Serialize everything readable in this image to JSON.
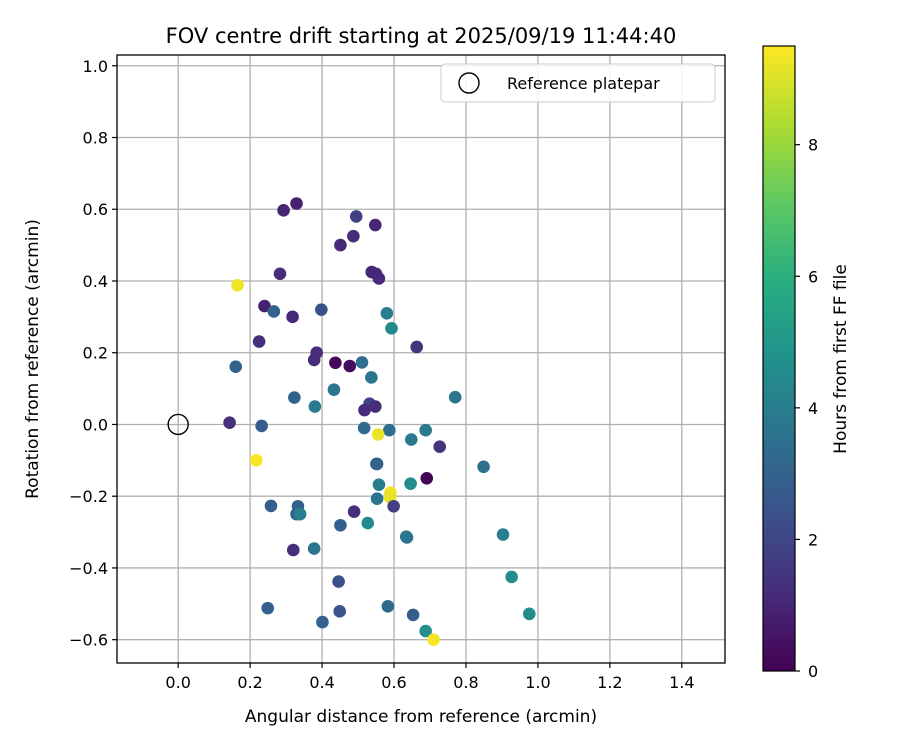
{
  "chart_data": {
    "type": "scatter",
    "title": "FOV centre drift starting at 2025/09/19 11:44:40",
    "xlabel": "Angular distance from reference (arcmin)",
    "ylabel": "Rotation from reference (arcmin)",
    "xlim": [
      -0.17,
      1.52
    ],
    "ylim": [
      -0.665,
      1.03
    ],
    "xticks": [
      "0.0",
      "0.2",
      "0.4",
      "0.6",
      "0.8",
      "1.0",
      "1.2",
      "1.4"
    ],
    "yticks": [
      "−0.6",
      "−0.4",
      "−0.2",
      "0.0",
      "0.2",
      "0.4",
      "0.6",
      "0.8",
      "1.0"
    ],
    "grid": true,
    "legend_position": "top-right",
    "legend": [
      {
        "label": "Reference platepar",
        "marker": "open-circle"
      }
    ],
    "reference_point": {
      "x": 0.0,
      "y": 0.0
    },
    "colorbar": {
      "label": "Hours from first FF file",
      "range": [
        0,
        9.5
      ],
      "ticks": [
        "0",
        "2",
        "4",
        "6",
        "8"
      ],
      "colormap": "viridis"
    },
    "series": [
      {
        "points": [
          {
            "x": 0.293,
            "y": 0.597,
            "h": 1.0
          },
          {
            "x": 0.329,
            "y": 0.616,
            "h": 0.9
          },
          {
            "x": 0.495,
            "y": 0.58,
            "h": 1.8
          },
          {
            "x": 0.548,
            "y": 0.556,
            "h": 1.0
          },
          {
            "x": 0.487,
            "y": 0.525,
            "h": 1.2
          },
          {
            "x": 0.451,
            "y": 0.5,
            "h": 1.1
          },
          {
            "x": 0.538,
            "y": 0.425,
            "h": 1.0
          },
          {
            "x": 0.55,
            "y": 0.42,
            "h": 1.0
          },
          {
            "x": 0.558,
            "y": 0.407,
            "h": 1.1
          },
          {
            "x": 0.283,
            "y": 0.42,
            "h": 1.2
          },
          {
            "x": 0.165,
            "y": 0.388,
            "h": 9.3
          },
          {
            "x": 0.24,
            "y": 0.33,
            "h": 0.9
          },
          {
            "x": 0.266,
            "y": 0.315,
            "h": 3.0
          },
          {
            "x": 0.318,
            "y": 0.3,
            "h": 1.1
          },
          {
            "x": 0.398,
            "y": 0.32,
            "h": 2.4
          },
          {
            "x": 0.58,
            "y": 0.31,
            "h": 4.0
          },
          {
            "x": 0.593,
            "y": 0.268,
            "h": 4.5
          },
          {
            "x": 0.663,
            "y": 0.216,
            "h": 1.4
          },
          {
            "x": 0.225,
            "y": 0.231,
            "h": 1.3
          },
          {
            "x": 0.385,
            "y": 0.2,
            "h": 1.2
          },
          {
            "x": 0.378,
            "y": 0.18,
            "h": 1.2
          },
          {
            "x": 0.437,
            "y": 0.172,
            "h": 0.2
          },
          {
            "x": 0.477,
            "y": 0.163,
            "h": 0.3
          },
          {
            "x": 0.511,
            "y": 0.173,
            "h": 3.4
          },
          {
            "x": 0.16,
            "y": 0.161,
            "h": 3.0
          },
          {
            "x": 0.537,
            "y": 0.131,
            "h": 3.7
          },
          {
            "x": 0.433,
            "y": 0.097,
            "h": 3.7
          },
          {
            "x": 0.323,
            "y": 0.075,
            "h": 3.0
          },
          {
            "x": 0.77,
            "y": 0.076,
            "h": 3.7
          },
          {
            "x": 0.38,
            "y": 0.05,
            "h": 3.9
          },
          {
            "x": 0.532,
            "y": 0.058,
            "h": 2.0
          },
          {
            "x": 0.548,
            "y": 0.05,
            "h": 1.2
          },
          {
            "x": 0.518,
            "y": 0.04,
            "h": 1.2
          },
          {
            "x": 0.143,
            "y": 0.005,
            "h": 1.3
          },
          {
            "x": 0.232,
            "y": -0.004,
            "h": 2.7
          },
          {
            "x": 0.517,
            "y": -0.01,
            "h": 3.3
          },
          {
            "x": 0.587,
            "y": -0.016,
            "h": 3.4
          },
          {
            "x": 0.688,
            "y": -0.016,
            "h": 3.9
          },
          {
            "x": 0.556,
            "y": -0.028,
            "h": 9.2
          },
          {
            "x": 0.648,
            "y": -0.042,
            "h": 3.9
          },
          {
            "x": 0.727,
            "y": -0.062,
            "h": 1.4
          },
          {
            "x": 0.217,
            "y": -0.1,
            "h": 9.4
          },
          {
            "x": 0.551,
            "y": -0.11,
            "h": 3.0
          },
          {
            "x": 0.553,
            "y": -0.11,
            "h": 2.9
          },
          {
            "x": 0.849,
            "y": -0.118,
            "h": 3.5
          },
          {
            "x": 0.691,
            "y": -0.15,
            "h": 0.1
          },
          {
            "x": 0.558,
            "y": -0.168,
            "h": 4.0
          },
          {
            "x": 0.646,
            "y": -0.165,
            "h": 4.6
          },
          {
            "x": 0.59,
            "y": -0.19,
            "h": 9.3
          },
          {
            "x": 0.589,
            "y": -0.203,
            "h": 9.2
          },
          {
            "x": 0.553,
            "y": -0.207,
            "h": 3.6
          },
          {
            "x": 0.599,
            "y": -0.228,
            "h": 1.8
          },
          {
            "x": 0.258,
            "y": -0.227,
            "h": 2.8
          },
          {
            "x": 0.333,
            "y": -0.228,
            "h": 2.9
          },
          {
            "x": 0.329,
            "y": -0.25,
            "h": 3.0
          },
          {
            "x": 0.339,
            "y": -0.25,
            "h": 4.0
          },
          {
            "x": 0.489,
            "y": -0.243,
            "h": 1.3
          },
          {
            "x": 0.451,
            "y": -0.281,
            "h": 2.9
          },
          {
            "x": 0.527,
            "y": -0.275,
            "h": 4.5
          },
          {
            "x": 0.636,
            "y": -0.315,
            "h": 3.5
          },
          {
            "x": 0.634,
            "y": -0.313,
            "h": 3.7
          },
          {
            "x": 0.903,
            "y": -0.307,
            "h": 4.0
          },
          {
            "x": 0.32,
            "y": -0.35,
            "h": 1.3
          },
          {
            "x": 0.378,
            "y": -0.346,
            "h": 3.6
          },
          {
            "x": 0.927,
            "y": -0.425,
            "h": 4.6
          },
          {
            "x": 0.446,
            "y": -0.438,
            "h": 2.4
          },
          {
            "x": 0.249,
            "y": -0.512,
            "h": 2.9
          },
          {
            "x": 0.449,
            "y": -0.521,
            "h": 2.5
          },
          {
            "x": 0.583,
            "y": -0.507,
            "h": 3.3
          },
          {
            "x": 0.976,
            "y": -0.528,
            "h": 4.6
          },
          {
            "x": 0.653,
            "y": -0.531,
            "h": 2.8
          },
          {
            "x": 0.401,
            "y": -0.551,
            "h": 3.0
          },
          {
            "x": 0.688,
            "y": -0.576,
            "h": 4.7
          },
          {
            "x": 0.71,
            "y": -0.6,
            "h": 9.4
          }
        ]
      }
    ]
  }
}
